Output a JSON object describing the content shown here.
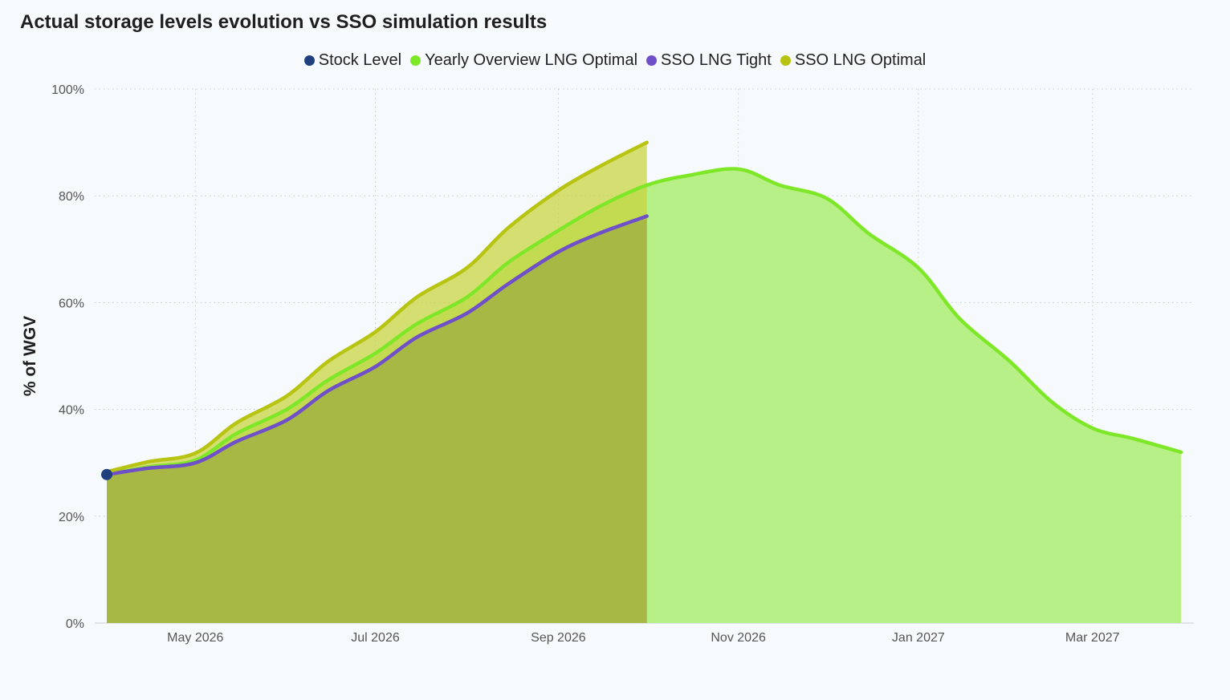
{
  "chart_data": {
    "type": "area",
    "title": "Actual storage levels evolution vs SSO simulation results",
    "ylabel": "% of WGV",
    "xlabel": "",
    "ylim": [
      0,
      100
    ],
    "xlim": [
      "2026-04-01",
      "2027-03-31"
    ],
    "grid": true,
    "legend_position": "top-center",
    "y_ticks": [
      "0%",
      "20%",
      "40%",
      "60%",
      "80%",
      "100%"
    ],
    "x_ticks": [
      {
        "date": "2026-05-01",
        "label": "May 2026"
      },
      {
        "date": "2026-07-01",
        "label": "Jul 2026"
      },
      {
        "date": "2026-09-01",
        "label": "Sep 2026"
      },
      {
        "date": "2026-11-01",
        "label": "Nov 2026"
      },
      {
        "date": "2027-01-01",
        "label": "Jan 2027"
      },
      {
        "date": "2027-03-01",
        "label": "Mar 2027"
      }
    ],
    "series": [
      {
        "name": "Stock Level",
        "color": "#1f3f7f",
        "kind": "point",
        "points": [
          [
            "2026-04-01",
            27.8
          ]
        ]
      },
      {
        "name": "Yearly Overview LNG Optimal",
        "color": "#7ee828",
        "fill": "#b8f088",
        "kind": "area",
        "points": [
          [
            "2026-04-01",
            27.8
          ],
          [
            "2026-04-15",
            29.2
          ],
          [
            "2026-05-01",
            30.5
          ],
          [
            "2026-05-15",
            35.5
          ],
          [
            "2026-06-01",
            40.0
          ],
          [
            "2026-06-15",
            45.5
          ],
          [
            "2026-07-01",
            50.5
          ],
          [
            "2026-07-15",
            56.0
          ],
          [
            "2026-08-01",
            61.0
          ],
          [
            "2026-08-15",
            67.5
          ],
          [
            "2026-09-01",
            73.5
          ],
          [
            "2026-09-15",
            78.0
          ],
          [
            "2026-10-01",
            82.0
          ],
          [
            "2026-10-15",
            83.8
          ],
          [
            "2026-11-01",
            85.0
          ],
          [
            "2026-11-15",
            82.0
          ],
          [
            "2026-12-01",
            79.5
          ],
          [
            "2026-12-15",
            73.0
          ],
          [
            "2027-01-01",
            66.5
          ],
          [
            "2027-01-15",
            57.0
          ],
          [
            "2027-02-01",
            49.0
          ],
          [
            "2027-02-15",
            41.5
          ],
          [
            "2027-03-01",
            36.5
          ],
          [
            "2027-03-15",
            34.5
          ],
          [
            "2027-03-31",
            32.0
          ]
        ]
      },
      {
        "name": "SSO LNG Tight",
        "color": "#7050c8",
        "kind": "line",
        "points": [
          [
            "2026-04-01",
            27.8
          ],
          [
            "2026-04-15",
            29.0
          ],
          [
            "2026-05-01",
            30.0
          ],
          [
            "2026-05-15",
            34.0
          ],
          [
            "2026-06-01",
            38.0
          ],
          [
            "2026-06-15",
            43.5
          ],
          [
            "2026-07-01",
            48.0
          ],
          [
            "2026-07-15",
            53.5
          ],
          [
            "2026-08-01",
            58.0
          ],
          [
            "2026-08-15",
            63.5
          ],
          [
            "2026-09-01",
            69.5
          ],
          [
            "2026-09-15",
            73.0
          ],
          [
            "2026-10-01",
            76.2
          ]
        ]
      },
      {
        "name": "SSO LNG Optimal",
        "color": "#b8c412",
        "fill": "#c8d23a",
        "kind": "area",
        "points": [
          [
            "2026-04-01",
            28.3
          ],
          [
            "2026-04-15",
            30.2
          ],
          [
            "2026-05-01",
            31.8
          ],
          [
            "2026-05-15",
            37.5
          ],
          [
            "2026-06-01",
            42.5
          ],
          [
            "2026-06-15",
            49.0
          ],
          [
            "2026-07-01",
            54.5
          ],
          [
            "2026-07-15",
            61.0
          ],
          [
            "2026-08-01",
            66.5
          ],
          [
            "2026-08-15",
            74.0
          ],
          [
            "2026-09-01",
            81.0
          ],
          [
            "2026-09-15",
            85.5
          ],
          [
            "2026-10-01",
            90.0
          ]
        ]
      }
    ]
  }
}
